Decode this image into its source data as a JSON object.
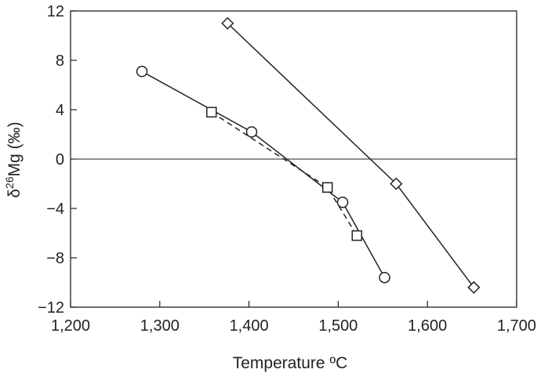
{
  "chart_data": {
    "type": "line",
    "xlabel": "Temperature ºC",
    "ylabel": "δ²⁶Mg (‰)",
    "ylabel_parts": {
      "pre": "δ",
      "sup": "26",
      "post": "Mg (‰)"
    },
    "xlim": [
      1200,
      1700
    ],
    "ylim": [
      -12,
      12
    ],
    "xticks": [
      1200,
      1300,
      1400,
      1500,
      1600,
      1700
    ],
    "xtick_labels": [
      "1,200",
      "1,300",
      "1,400",
      "1,500",
      "1,600",
      "1,700"
    ],
    "yticks": [
      -12,
      -8,
      -4,
      0,
      4,
      8,
      12
    ],
    "ytick_labels": [
      "−12",
      "−8",
      "−4",
      "0",
      "4",
      "8",
      "12"
    ],
    "reference_line_y": 0,
    "grid": false,
    "series": [
      {
        "marker": "circle",
        "line_style": "solid",
        "x": [
          1280,
          1403,
          1505,
          1552
        ],
        "y": [
          7.1,
          2.2,
          -3.5,
          -9.6
        ]
      },
      {
        "marker": "square",
        "line_style": "dashed",
        "x": [
          1358,
          1488,
          1521
        ],
        "y": [
          3.8,
          -2.3,
          -6.2
        ]
      },
      {
        "marker": "diamond",
        "line_style": "solid",
        "x": [
          1376,
          1565,
          1652
        ],
        "y": [
          11.0,
          -2.0,
          -10.4
        ]
      }
    ]
  }
}
